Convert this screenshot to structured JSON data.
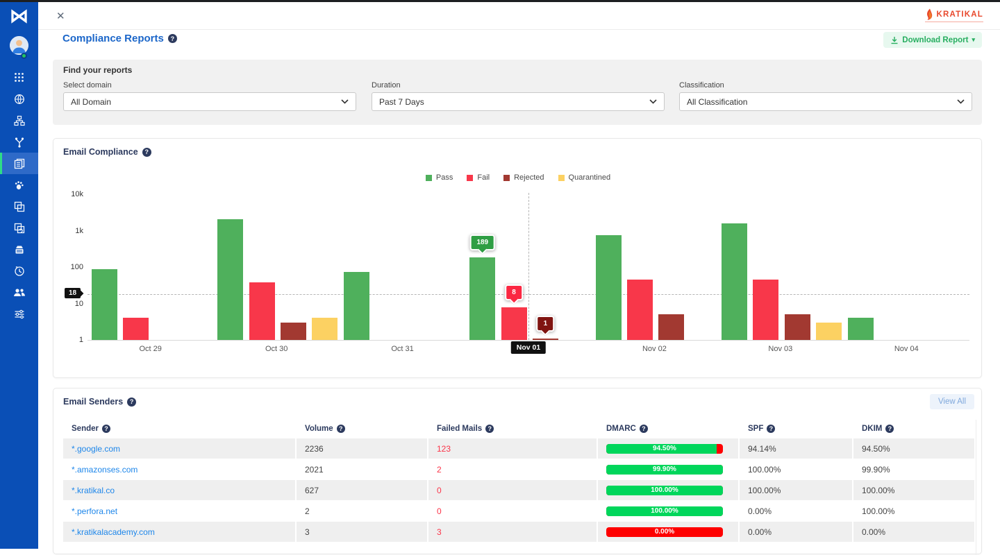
{
  "icons": {
    "logo": "⋈",
    "close": "✕",
    "help": "?",
    "caret": "▾"
  },
  "brand": {
    "name": "KRATIKAL"
  },
  "page": {
    "title": "Compliance Reports"
  },
  "toolbar": {
    "download_label": "Download Report"
  },
  "filters": {
    "title": "Find your reports",
    "fields": [
      {
        "label": "Select domain",
        "value": "All Domain"
      },
      {
        "label": "Duration",
        "value": "Past 7 Days"
      },
      {
        "label": "Classification",
        "value": "All Classification"
      }
    ]
  },
  "chart_card": {
    "title": "Email Compliance"
  },
  "chart_data": {
    "type": "bar",
    "title": "Email Compliance",
    "categories": [
      "Oct 29",
      "Oct 30",
      "Oct 31",
      "Nov 01",
      "Nov 02",
      "Nov 03",
      "Nov 04"
    ],
    "series": [
      {
        "name": "Pass",
        "color": "#4fb05c",
        "badge_color": "#2f9e44",
        "values": [
          89,
          2100,
          75,
          189,
          760,
          1600,
          4
        ]
      },
      {
        "name": "Fail",
        "color": "#f8374a",
        "badge_color": "#fb2742",
        "values": [
          4,
          38,
          null,
          8,
          45,
          45,
          null
        ]
      },
      {
        "name": "Rejected",
        "color": "#a23931",
        "badge_color": "#801411",
        "values": [
          null,
          3,
          null,
          1,
          5,
          5,
          null
        ]
      },
      {
        "name": "Quarantined",
        "color": "#fcd162",
        "badge_color": "#e3a917",
        "values": [
          null,
          4,
          null,
          null,
          null,
          3,
          null
        ]
      }
    ],
    "y_axis": {
      "scale": "log",
      "range": [
        1,
        10000
      ],
      "ticks": [
        "10k",
        "1k",
        "100",
        "10",
        "1"
      ],
      "tick_values": [
        10000,
        1000,
        100,
        10,
        1
      ]
    },
    "legend_position": "top",
    "grid": false,
    "hover": {
      "category": "Nov 01",
      "x_label": "Nov 01",
      "y_crosshair_value": 18,
      "y_label": "18",
      "tooltips": [
        {
          "series": "Pass",
          "value": "189"
        },
        {
          "series": "Fail",
          "value": "8"
        },
        {
          "series": "Rejected",
          "value": "1"
        }
      ]
    }
  },
  "senders": {
    "title": "Email Senders",
    "view_all_label": "View All",
    "columns": [
      "Sender",
      "Volume",
      "Failed Mails",
      "DMARC",
      "SPF",
      "DKIM"
    ],
    "rows": [
      {
        "sender": "*.google.com",
        "volume": "2236",
        "failed": "123",
        "dmarc": "94.50%",
        "spf": "94.14%",
        "dkim": "94.50%"
      },
      {
        "sender": "*.amazonses.com",
        "volume": "2021",
        "failed": "2",
        "dmarc": "99.90%",
        "spf": "100.00%",
        "dkim": "99.90%"
      },
      {
        "sender": "*.kratikal.co",
        "volume": "627",
        "failed": "0",
        "dmarc": "100.00%",
        "spf": "100.00%",
        "dkim": "100.00%"
      },
      {
        "sender": "*.perfora.net",
        "volume": "2",
        "failed": "0",
        "dmarc": "100.00%",
        "spf": "0.00%",
        "dkim": "100.00%"
      },
      {
        "sender": "*.kratikalacademy.com",
        "volume": "3",
        "failed": "3",
        "dmarc": "0.00%",
        "spf": "0.00%",
        "dkim": "0.00%"
      }
    ]
  },
  "colors": {
    "sidebar": "#0a4fb6",
    "sidebar_active": "#2e6ac8",
    "active_strip": "#2edd87",
    "title_blue": "#1b66c9",
    "navy": "#2c3a5e",
    "brand_red": "#e8482c",
    "download_green": "#27ae60",
    "progress_green": "#00d65b",
    "progress_red": "#fe0000",
    "link_blue": "#1d86ea",
    "failed_red": "#fb3449"
  }
}
